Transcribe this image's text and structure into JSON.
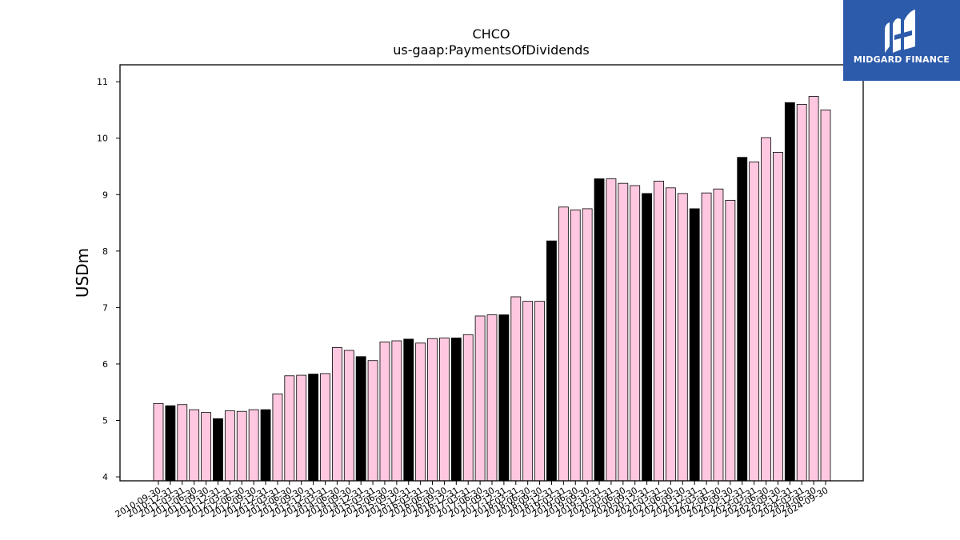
{
  "logo": {
    "text": "MIDGARD FINANCE",
    "icon": "midgard-m-logo-icon",
    "bg_color": "#2d5bab"
  },
  "chart_data": {
    "type": "bar",
    "title": "CHCO",
    "subtitle": "us-gaap:PaymentsOfDividends",
    "xlabel": "",
    "ylabel": "USDm",
    "ylim": [
      3.93,
      11.3
    ],
    "yticks": [
      4,
      5,
      6,
      7,
      8,
      9,
      10,
      11
    ],
    "grid": false,
    "bar_colors": {
      "quarter": "#ffc8e0",
      "year_end_q3": "#000000",
      "edge": "#000000"
    },
    "categories": [
      "2010-09-30",
      "2010-12-31",
      "2011-03-31",
      "2011-06-30",
      "2011-09-30",
      "2011-12-31",
      "2012-03-31",
      "2012-06-30",
      "2012-09-30",
      "2012-12-31",
      "2013-03-31",
      "2013-06-30",
      "2013-09-30",
      "2013-12-31",
      "2014-03-31",
      "2014-06-30",
      "2014-09-30",
      "2014-12-31",
      "2015-03-31",
      "2015-06-30",
      "2015-09-30",
      "2015-12-31",
      "2016-03-31",
      "2016-06-30",
      "2016-09-30",
      "2016-12-31",
      "2017-03-31",
      "2017-06-30",
      "2017-09-30",
      "2017-12-31",
      "2018-03-31",
      "2018-06-30",
      "2018-09-30",
      "2018-12-31",
      "2019-03-31",
      "2019-06-30",
      "2019-09-30",
      "2019-12-31",
      "2020-03-31",
      "2020-06-30",
      "2020-09-30",
      "2020-12-31",
      "2021-03-31",
      "2021-06-30",
      "2021-09-30",
      "2021-12-31",
      "2022-03-31",
      "2022-06-30",
      "2022-09-30",
      "2022-12-31",
      "2023-03-31",
      "2023-06-30",
      "2023-09-30",
      "2023-12-31",
      "2024-03-31",
      "2024-06-30",
      "2024-09-30"
    ],
    "xtick_labels": [
      "2010-09-30",
      "2010-12-31",
      "2011-03-31",
      "2011-06-30",
      "2011-09-30",
      "2011-12-31",
      "2012-03-31",
      "2012-06-30",
      "2012-09-30",
      "2012-12-31",
      "2013-03-31",
      "2013-06-30",
      "2013-09-30",
      "2013-12-31",
      "2014-03-31",
      "2014-06-30",
      "2014-09-30",
      "2014-12-31",
      "2015-03-31",
      "2015-06-30",
      "2015-09-30",
      "2015-12-31",
      "2016-03-31",
      "2016-06-30",
      "2016-09-30",
      "2016-12-31",
      "2017-03-31",
      "2017-06-30",
      "2017-09-30",
      "2017-12-31",
      "2018-03-31",
      "2018-06-30",
      "2018-09-30",
      "2018-12-31",
      "2019-03-31",
      "2019-06-30",
      "2019-09-30",
      "2019-12-31",
      "2020-03-31",
      "2020-06-30",
      "2020-09-30",
      "2020-12-31",
      "2021-03-31",
      "2021-06-30",
      "2021-09-30",
      "2021-12-31",
      "2022-03-31",
      "2022-06-30",
      "2022-09-30",
      "2022-12-31",
      "2023-03-31",
      "2023-06-30",
      "2023-09-30",
      "2023-12-31",
      "2024-03-31",
      "2024-06-30",
      "2024-09-30"
    ],
    "values": [
      5.3,
      5.26,
      5.28,
      5.19,
      5.14,
      5.03,
      5.17,
      5.16,
      5.19,
      5.19,
      5.47,
      5.79,
      5.8,
      5.82,
      5.83,
      6.29,
      6.24,
      6.13,
      6.06,
      6.39,
      6.41,
      6.44,
      6.37,
      6.45,
      6.46,
      6.46,
      6.52,
      6.85,
      6.87,
      6.87,
      7.19,
      7.11,
      7.11,
      8.18,
      8.78,
      8.73,
      8.75,
      9.28,
      9.28,
      9.2,
      9.16,
      9.02,
      9.24,
      9.12,
      9.02,
      8.75,
      9.03,
      9.1,
      8.9,
      9.66,
      9.58,
      10.01,
      9.75,
      10.63,
      10.6,
      10.74,
      10.5
    ],
    "highlight": [
      false,
      true,
      false,
      false,
      false,
      true,
      false,
      false,
      false,
      true,
      false,
      false,
      false,
      true,
      false,
      false,
      false,
      true,
      false,
      false,
      false,
      true,
      false,
      false,
      false,
      true,
      false,
      false,
      false,
      true,
      false,
      false,
      false,
      true,
      false,
      false,
      false,
      true,
      false,
      false,
      false,
      true,
      false,
      false,
      false,
      true,
      false,
      false,
      false,
      true,
      false,
      false,
      false,
      true,
      false,
      false,
      false
    ]
  }
}
